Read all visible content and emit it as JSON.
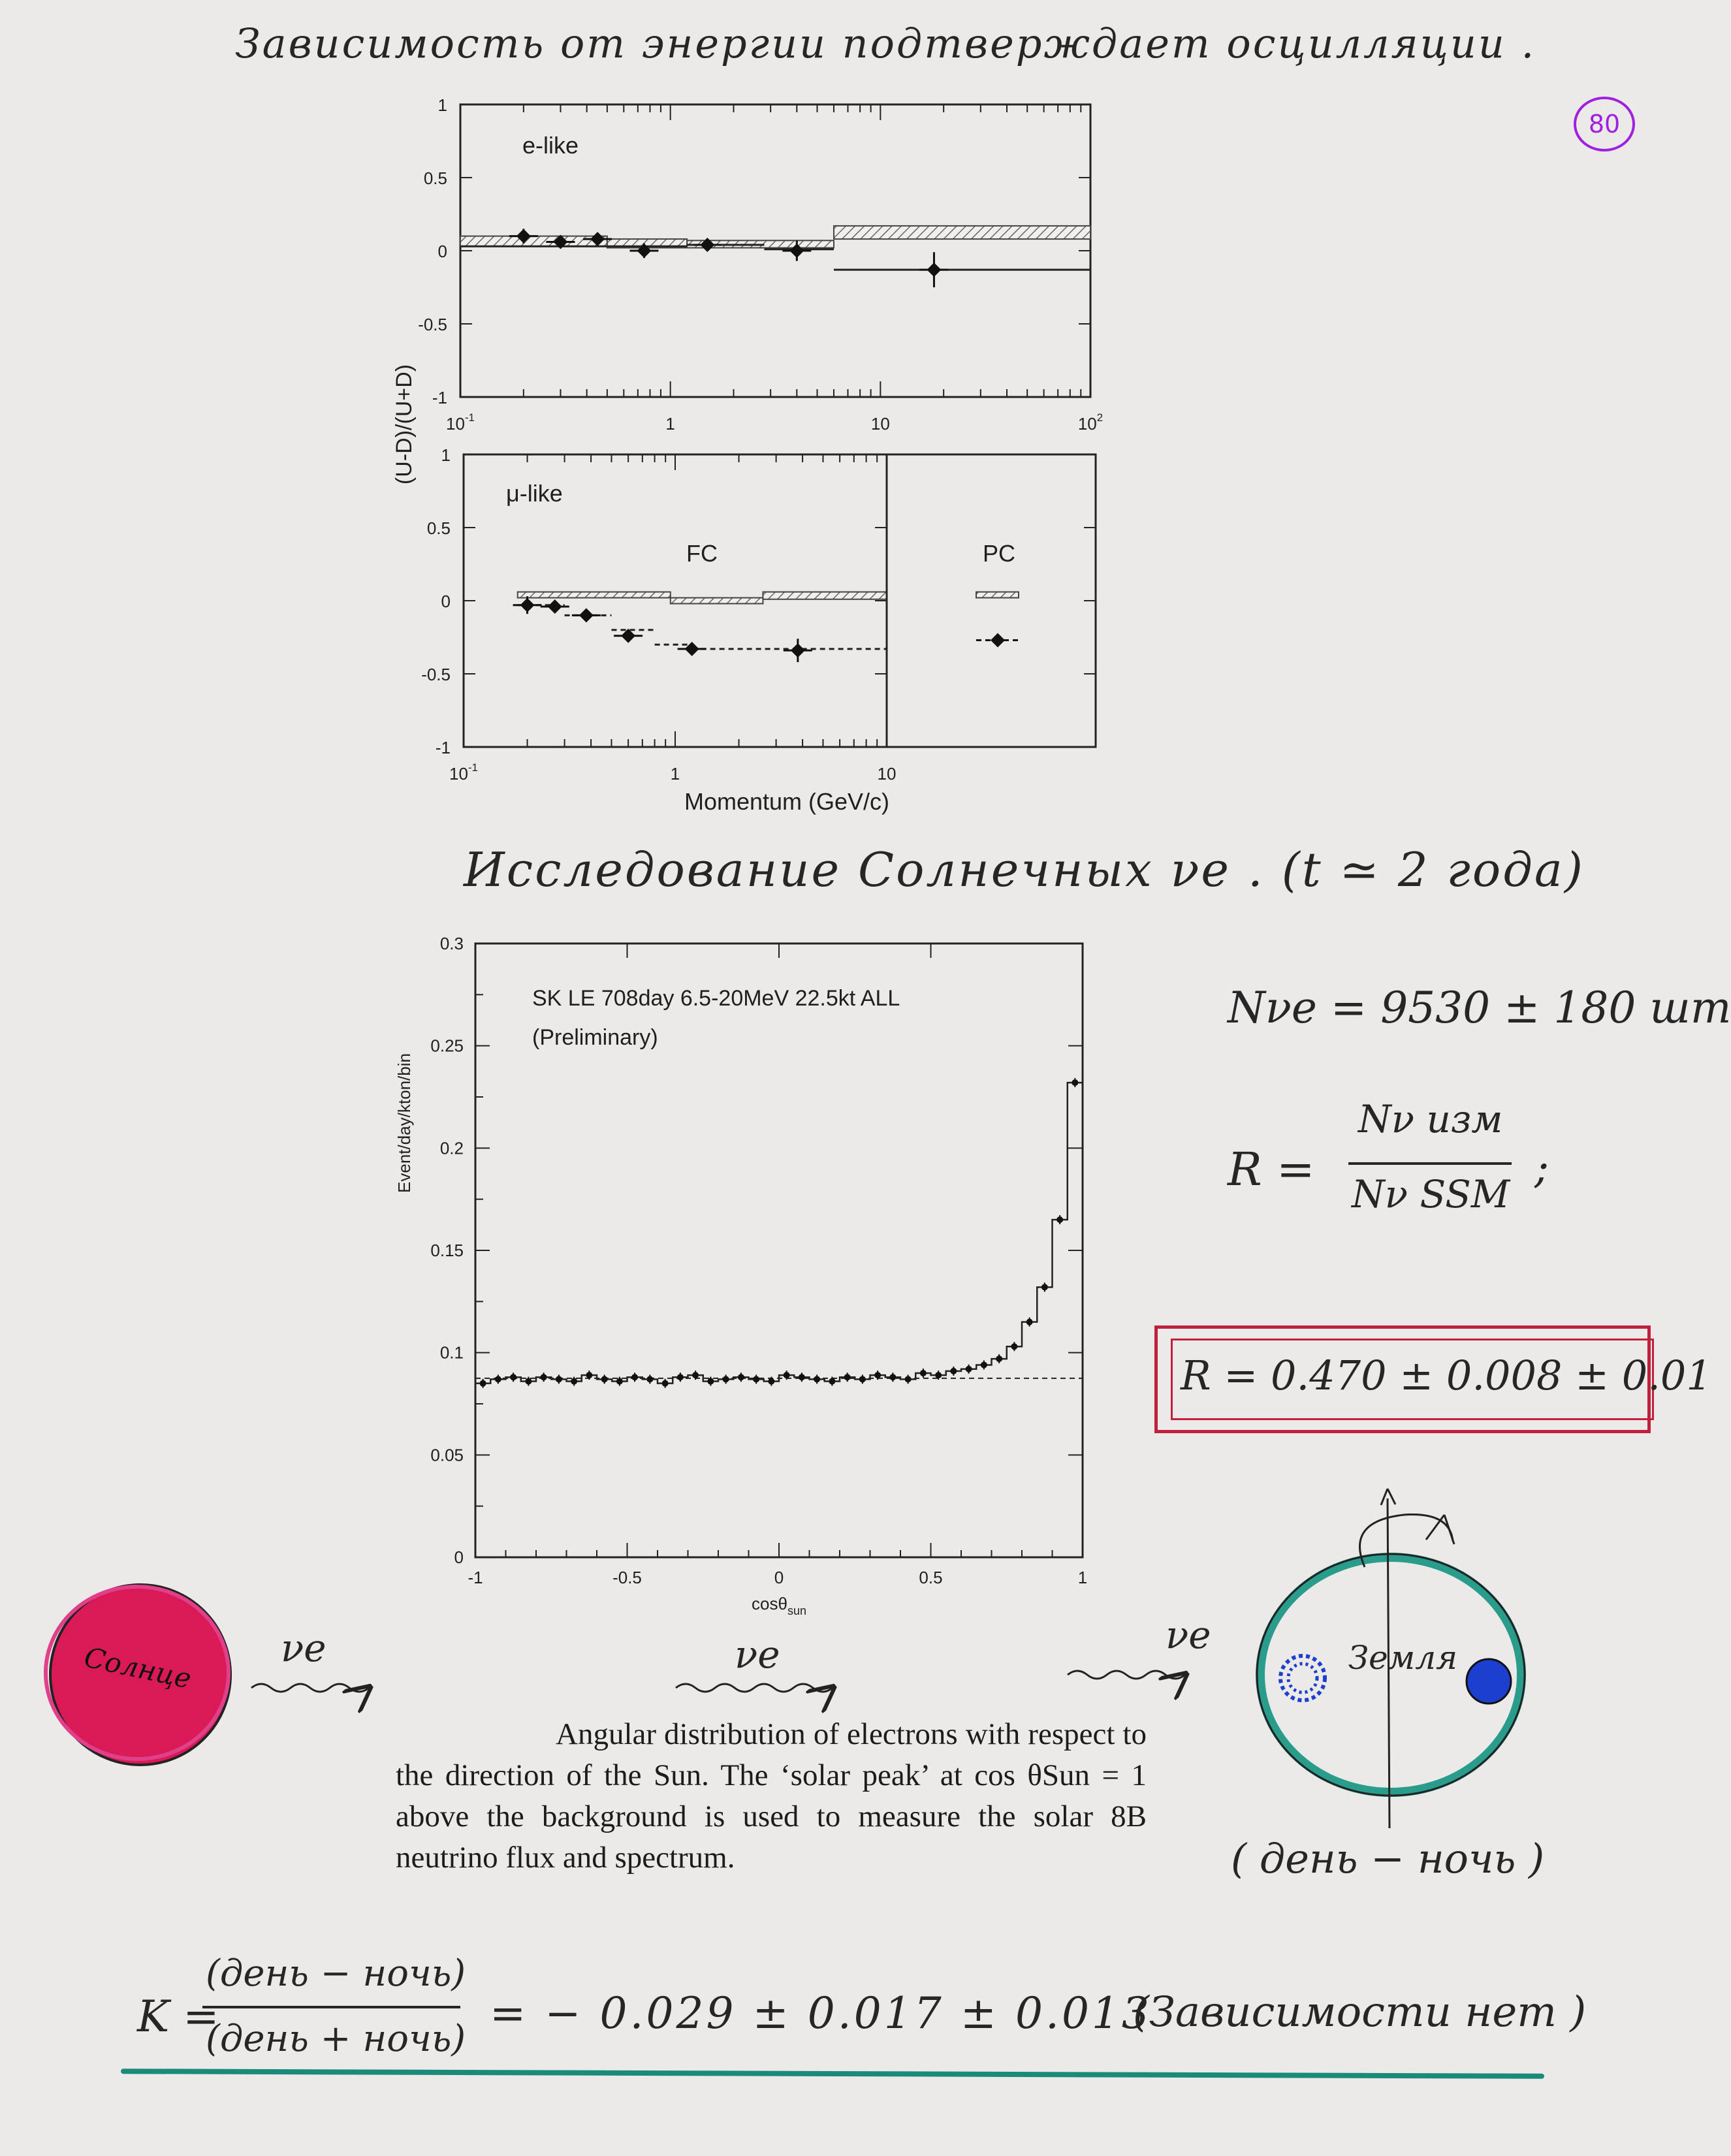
{
  "page": {
    "page_number": "80",
    "top_note": "Зависимость от энергии подтверждает осцилляции .",
    "solar_heading": "Исследование Солнечных νe . (t ≃ 2 года)",
    "n_nu_e": "Nνe = 9530 ± 180 шт",
    "r_definition": {
      "lhs": "R =",
      "numerator": "Nν изм",
      "denominator": "Nν SSM",
      "suffix": ";"
    },
    "r_result": "R = 0.470 ± 0.008 ± 0.01",
    "sun_label": "Солнце",
    "earth_label": "Земля",
    "nu_labels": [
      "νe",
      "νe",
      "νe"
    ],
    "day_night": "( день − ночь )",
    "k_formula": {
      "lhs": "K =",
      "numerator": "(день − ночь)",
      "denominator": "(день + ночь)",
      "rhs": "= − 0.029 ± 0.017 ± 0.013",
      "note": "(Зависимости нет )"
    },
    "caption": "Angular distribution of electrons with respect to the direction of the Sun. The ‘solar peak’ at cos θSun = 1 above the background is used to measure the solar 8B neutrino flux and spectrum.",
    "colors": {
      "sun": "#d41a4e",
      "earth_ring": "#2a9c8c",
      "blue": "#1c3fd0",
      "box": "#c0203c",
      "magenta": "#a020e0",
      "underline": "#1a8a7a"
    }
  },
  "chart_data": [
    {
      "type": "scatter",
      "panel": "e-like",
      "ylabel": "(U-D)/(U+D)",
      "x_scale": "log",
      "xlim": [
        0.1,
        100
      ],
      "ylim": [
        -1,
        1
      ],
      "x_tick_labels": [
        "10 -1",
        "1",
        "10",
        "10 2"
      ],
      "y_tick_labels": [
        "1",
        "0.5",
        "0",
        "-0.5",
        "-1"
      ],
      "points": [
        {
          "x": 0.2,
          "y": 0.1,
          "err": 0.05
        },
        {
          "x": 0.3,
          "y": 0.06,
          "err": 0.04
        },
        {
          "x": 0.45,
          "y": 0.08,
          "err": 0.04
        },
        {
          "x": 0.75,
          "y": 0.0,
          "err": 0.05
        },
        {
          "x": 1.5,
          "y": 0.04,
          "err": 0.04
        },
        {
          "x": 4.0,
          "y": 0.0,
          "err": 0.07
        },
        {
          "x": 18,
          "y": -0.13,
          "err": 0.12
        }
      ],
      "mc_band_bins": [
        {
          "x0": 0.1,
          "x1": 0.5,
          "lo": 0.03,
          "hi": 0.1
        },
        {
          "x0": 0.5,
          "x1": 1.2,
          "lo": 0.02,
          "hi": 0.08
        },
        {
          "x0": 1.2,
          "x1": 6,
          "lo": 0.02,
          "hi": 0.07
        },
        {
          "x0": 6,
          "x1": 100,
          "lo": 0.08,
          "hi": 0.17
        }
      ],
      "fit_bins": [
        {
          "x0": 0.1,
          "x1": 0.5,
          "y": 0.03
        },
        {
          "x0": 0.5,
          "x1": 1.2,
          "y": 0.03
        },
        {
          "x0": 1.2,
          "x1": 2.8,
          "y": 0.04
        },
        {
          "x0": 2.8,
          "x1": 6,
          "y": 0.01
        },
        {
          "x0": 6,
          "x1": 100,
          "y": -0.13
        }
      ]
    },
    {
      "type": "scatter",
      "panel": "μ-like",
      "ylabel": "(U-D)/(U+D)",
      "xlabel": "Momentum (GeV/c)",
      "x_scale": "log",
      "xlim": [
        0.1,
        10
      ],
      "ylim": [
        -1,
        1
      ],
      "x_tick_labels": [
        "10 -1",
        "1",
        "10"
      ],
      "y_tick_labels": [
        "1",
        "0.5",
        "0",
        "-0.5",
        "-1"
      ],
      "region_labels": [
        "FC",
        "PC"
      ],
      "points": [
        {
          "x": 0.2,
          "y": -0.03,
          "err": 0.06
        },
        {
          "x": 0.27,
          "y": -0.04,
          "err": 0.04
        },
        {
          "x": 0.38,
          "y": -0.1,
          "err": 0.04
        },
        {
          "x": 0.6,
          "y": -0.24,
          "err": 0.04
        },
        {
          "x": 1.2,
          "y": -0.33,
          "err": 0.04
        },
        {
          "x": 3.8,
          "y": -0.34,
          "err": 0.08
        }
      ],
      "pc_point": {
        "y": -0.27
      },
      "mc_band_bins": [
        {
          "x0": 0.18,
          "x1": 0.95,
          "lo": 0.02,
          "hi": 0.06
        },
        {
          "x0": 0.95,
          "x1": 2.6,
          "lo": -0.02,
          "hi": 0.02
        },
        {
          "x0": 2.6,
          "x1": 10,
          "lo": 0.01,
          "hi": 0.06
        }
      ],
      "pc_band": {
        "lo": 0.02,
        "hi": 0.06
      },
      "fit_bins": [
        {
          "x0": 0.18,
          "x1": 0.3,
          "y": -0.03
        },
        {
          "x0": 0.3,
          "x1": 0.5,
          "y": -0.1
        },
        {
          "x0": 0.5,
          "x1": 0.8,
          "y": -0.2
        },
        {
          "x0": 0.8,
          "x1": 1.2,
          "y": -0.3
        },
        {
          "x0": 1.2,
          "x1": 10,
          "y": -0.33
        }
      ]
    },
    {
      "type": "scatter",
      "title": "SK LE 708day 6.5-20MeV 22.5kt ALL",
      "subtitle": "(Preliminary)",
      "ylabel": "Event/day/kton/bin",
      "xlabel": "cosθsun",
      "xlim": [
        -1,
        1
      ],
      "ylim": [
        0,
        0.3
      ],
      "x_tick_labels": [
        "-1",
        "-0.5",
        "0",
        "0.5",
        "1"
      ],
      "y_tick_labels": [
        "0",
        "0.05",
        "0.1",
        "0.15",
        "0.2",
        "0.25",
        "0.3"
      ],
      "background_level": 0.0875,
      "points_x_from": -0.975,
      "points_x_step": 0.05,
      "points_y": [
        0.085,
        0.087,
        0.088,
        0.086,
        0.088,
        0.087,
        0.086,
        0.089,
        0.087,
        0.086,
        0.088,
        0.087,
        0.085,
        0.088,
        0.089,
        0.086,
        0.087,
        0.088,
        0.087,
        0.086,
        0.089,
        0.088,
        0.087,
        0.086,
        0.088,
        0.087,
        0.089,
        0.088,
        0.087,
        0.09,
        0.089,
        0.091,
        0.092,
        0.094,
        0.097,
        0.103,
        0.115,
        0.132,
        0.165,
        0.232
      ]
    }
  ]
}
